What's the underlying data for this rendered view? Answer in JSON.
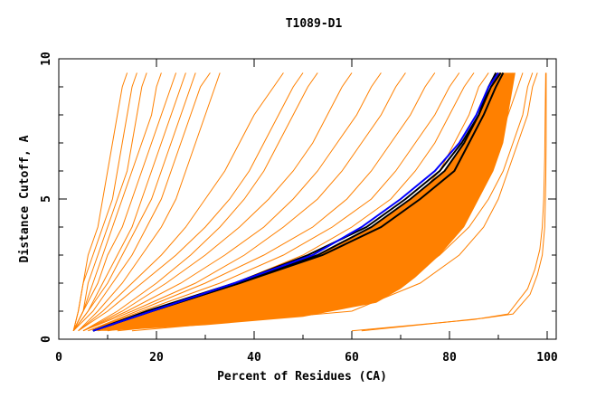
{
  "chart_data": {
    "type": "line",
    "title": "T1089-D1",
    "xlabel": "Percent of Residues (CA)",
    "ylabel": "Distance Cutoff, A",
    "xlim": [
      0,
      100
    ],
    "ylim": [
      0,
      10
    ],
    "x_ticks": [
      0,
      20,
      40,
      60,
      80,
      100
    ],
    "x_tick_labels": [
      "0",
      "20",
      "40",
      "60",
      "80",
      "100"
    ],
    "y_ticks": [
      0,
      5,
      10
    ],
    "y_tick_labels": [
      "0",
      "5",
      "10"
    ],
    "grid": false,
    "colors": {
      "models": "#ff8000",
      "highlight": "#0000ff",
      "reference": "#000000"
    },
    "y_levels": [
      0.3,
      1,
      2,
      3,
      4,
      5,
      6,
      7,
      8,
      9,
      9.5
    ],
    "dense_band": [
      [
        7,
        0.3
      ],
      [
        19,
        1
      ],
      [
        37,
        2
      ],
      [
        53,
        3
      ],
      [
        64,
        4
      ],
      [
        72,
        5
      ],
      [
        79,
        6
      ],
      [
        83,
        7
      ],
      [
        86,
        8
      ],
      [
        88.5,
        9
      ],
      [
        89.5,
        9.5
      ],
      [
        93.5,
        9.5
      ],
      [
        93,
        9
      ],
      [
        92,
        8
      ],
      [
        91,
        7
      ],
      [
        89,
        6
      ],
      [
        86,
        5
      ],
      [
        83,
        4
      ],
      [
        78,
        3
      ],
      [
        73,
        2.2
      ],
      [
        70,
        1.8
      ],
      [
        65,
        1.3
      ],
      [
        50,
        0.8
      ],
      [
        30,
        0.5
      ],
      [
        10,
        0.3
      ]
    ],
    "series": [
      {
        "name": "model",
        "color": "models",
        "x": [
          3,
          4,
          5,
          6,
          8,
          9,
          10,
          11,
          12,
          13,
          14
        ]
      },
      {
        "name": "model",
        "color": "models",
        "x": [
          3,
          4,
          5,
          7,
          9,
          11,
          12,
          13,
          14,
          15,
          16
        ]
      },
      {
        "name": "model",
        "color": "models",
        "x": [
          3,
          5,
          6,
          8,
          10,
          12,
          14,
          15,
          16,
          17,
          18
        ]
      },
      {
        "name": "model",
        "color": "models",
        "x": [
          3,
          5,
          7,
          9,
          11,
          13,
          15,
          17,
          19,
          20,
          21
        ]
      },
      {
        "name": "model",
        "color": "models",
        "x": [
          3,
          5,
          8,
          10,
          13,
          15,
          17,
          19,
          21,
          23,
          24
        ]
      },
      {
        "name": "model",
        "color": "models",
        "x": [
          3,
          6,
          9,
          12,
          15,
          17,
          19,
          21,
          23,
          25,
          26
        ]
      },
      {
        "name": "model",
        "color": "models",
        "x": [
          3,
          6,
          10,
          13,
          16,
          19,
          21,
          23,
          25,
          27,
          28
        ]
      },
      {
        "name": "model",
        "color": "models",
        "x": [
          3,
          7,
          11,
          15,
          18,
          21,
          23,
          25,
          27,
          29,
          31
        ]
      },
      {
        "name": "model",
        "color": "models",
        "x": [
          4,
          8,
          13,
          17,
          21,
          24,
          26,
          28,
          30,
          32,
          33
        ]
      },
      {
        "name": "model",
        "color": "models",
        "x": [
          4,
          9,
          15,
          21,
          26,
          30,
          34,
          37,
          40,
          44,
          46
        ]
      },
      {
        "name": "model",
        "color": "models",
        "x": [
          4,
          10,
          17,
          24,
          30,
          35,
          39,
          42,
          45,
          48,
          50
        ]
      },
      {
        "name": "model",
        "color": "models",
        "x": [
          5,
          12,
          20,
          27,
          33,
          38,
          42,
          45,
          48,
          51,
          53
        ]
      },
      {
        "name": "model",
        "color": "models",
        "x": [
          5,
          13,
          22,
          30,
          37,
          43,
          48,
          52,
          55,
          58,
          60
        ]
      },
      {
        "name": "model",
        "color": "models",
        "x": [
          5,
          14,
          25,
          34,
          42,
          48,
          53,
          57,
          61,
          64,
          66
        ]
      },
      {
        "name": "model",
        "color": "models",
        "x": [
          5,
          15,
          28,
          38,
          46,
          53,
          58,
          62,
          66,
          69,
          71
        ]
      },
      {
        "name": "model",
        "color": "models",
        "x": [
          6,
          16,
          30,
          42,
          52,
          59,
          64,
          68,
          72,
          75,
          77
        ]
      },
      {
        "name": "model",
        "color": "models",
        "x": [
          6,
          17,
          33,
          46,
          56,
          64,
          69,
          73,
          77,
          80,
          82
        ]
      },
      {
        "name": "model",
        "color": "models",
        "x": [
          6,
          18,
          36,
          50,
          60,
          68,
          73,
          77,
          80,
          83,
          85
        ]
      },
      {
        "name": "model",
        "color": "models",
        "x": [
          7,
          20,
          40,
          55,
          66,
          73,
          78,
          81,
          84,
          86,
          88
        ]
      },
      {
        "name": "model",
        "color": "models",
        "x": [
          8,
          30,
          55,
          68,
          76,
          81,
          85,
          88,
          90,
          92,
          93
        ]
      },
      {
        "name": "model",
        "color": "models",
        "x": [
          10,
          40,
          62,
          73,
          80,
          85,
          88,
          90,
          92,
          94,
          95
        ]
      },
      {
        "name": "model",
        "color": "models",
        "x": [
          12,
          50,
          70,
          78,
          84,
          88,
          91,
          93,
          95,
          96,
          97
        ]
      },
      {
        "name": "model",
        "color": "models",
        "x": [
          15,
          60,
          74,
          82,
          87,
          90,
          92,
          94,
          96,
          97,
          98
        ]
      },
      {
        "name": "model",
        "color": "models",
        "x": [
          60,
          85,
          92,
          96,
          97.5,
          98.5,
          99,
          99.3,
          99.5,
          99.6,
          99.7
        ],
        "y": [
          0.3,
          0.7,
          0.9,
          1.8,
          2.5,
          3.2,
          4,
          5,
          6.5,
          8,
          9.5
        ]
      },
      {
        "name": "model",
        "color": "models",
        "x": [
          62,
          87,
          93,
          96.5,
          98,
          99,
          99.5,
          99.7,
          99.8,
          99.8,
          99.8
        ],
        "y": [
          0.3,
          0.75,
          0.9,
          1.6,
          2.3,
          3,
          4,
          5.5,
          7,
          8.5,
          9.5
        ]
      },
      {
        "name": "reference",
        "color": "reference",
        "x": [
          7,
          19,
          37,
          53,
          64,
          72,
          79,
          83,
          86,
          88.5,
          90.5
        ]
      },
      {
        "name": "reference",
        "color": "reference",
        "x": [
          7,
          18,
          36,
          51,
          63,
          71,
          78,
          82.5,
          86,
          88,
          89.5
        ]
      },
      {
        "name": "reference",
        "color": "reference",
        "x": [
          7,
          19,
          37,
          54,
          66,
          74,
          81,
          84,
          87,
          89.5,
          91
        ]
      },
      {
        "name": "highlight",
        "color": "highlight",
        "x": [
          7,
          19,
          36,
          52,
          62,
          70,
          77,
          82,
          85.5,
          88,
          90
        ]
      }
    ]
  }
}
